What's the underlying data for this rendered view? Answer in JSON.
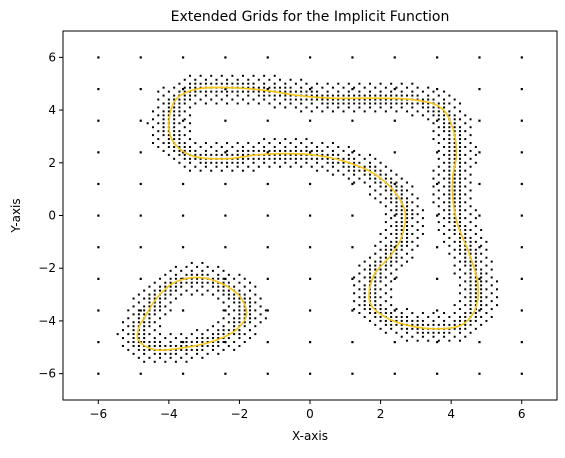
{
  "chart_data": {
    "type": "scatter",
    "title": "Extended Grids for the Implicit Function",
    "xlabel": "X-axis",
    "ylabel": "Y-axis",
    "xlim": [
      -7,
      7
    ],
    "ylim": [
      -7,
      7
    ],
    "x_ticks": [
      -6,
      -4,
      -2,
      0,
      2,
      4,
      6
    ],
    "y_ticks": [
      -6,
      -4,
      -2,
      0,
      2,
      4,
      6
    ],
    "grid": false,
    "legend": "none",
    "base_grid": {
      "x_start": -6,
      "x_end": 6,
      "x_step": 1.2,
      "y_start": -6,
      "y_end": 6,
      "y_step": 1.2,
      "color": "#000000",
      "marker": "small square"
    },
    "series": [
      {
        "type": "line",
        "color": "#f5c518",
        "closed": true,
        "points": [
          [
            -3.8,
            4.4
          ],
          [
            -3.2,
            4.8
          ],
          [
            -2.3,
            4.85
          ],
          [
            -1.3,
            4.75
          ],
          [
            -0.3,
            4.55
          ],
          [
            0.6,
            4.45
          ],
          [
            1.8,
            4.45
          ],
          [
            2.9,
            4.4
          ],
          [
            3.7,
            4.1
          ],
          [
            4.05,
            3.3
          ],
          [
            4.15,
            2.3
          ],
          [
            4.05,
            1.5
          ],
          [
            4.05,
            0.6
          ],
          [
            4.2,
            -0.4
          ],
          [
            4.5,
            -1.4
          ],
          [
            4.75,
            -2.5
          ],
          [
            4.7,
            -3.5
          ],
          [
            4.3,
            -4.15
          ],
          [
            3.6,
            -4.3
          ],
          [
            2.9,
            -4.2
          ],
          [
            2.2,
            -3.9
          ],
          [
            1.7,
            -3.3
          ],
          [
            1.8,
            -2.3
          ],
          [
            2.3,
            -1.5
          ],
          [
            2.6,
            -0.8
          ],
          [
            2.7,
            0.1
          ],
          [
            2.4,
            0.9
          ],
          [
            1.8,
            1.6
          ],
          [
            1.0,
            2.05
          ],
          [
            0.1,
            2.3
          ],
          [
            -0.7,
            2.35
          ],
          [
            -1.5,
            2.3
          ],
          [
            -2.4,
            2.15
          ],
          [
            -3.3,
            2.25
          ],
          [
            -3.85,
            2.75
          ],
          [
            -4.0,
            3.5
          ]
        ]
      },
      {
        "type": "line",
        "color": "#f5c518",
        "closed": true,
        "points": [
          [
            -4.7,
            -3.9
          ],
          [
            -4.35,
            -3.15
          ],
          [
            -3.85,
            -2.55
          ],
          [
            -3.2,
            -2.35
          ],
          [
            -2.55,
            -2.55
          ],
          [
            -2.0,
            -3.05
          ],
          [
            -1.8,
            -3.75
          ],
          [
            -2.1,
            -4.35
          ],
          [
            -2.7,
            -4.75
          ],
          [
            -3.5,
            -5.0
          ],
          [
            -4.35,
            -5.1
          ],
          [
            -4.85,
            -4.75
          ],
          [
            -4.85,
            -4.25
          ]
        ]
      }
    ],
    "refined_band_color": "#000000",
    "refined_band_description": "dense black grid points along the curves"
  }
}
